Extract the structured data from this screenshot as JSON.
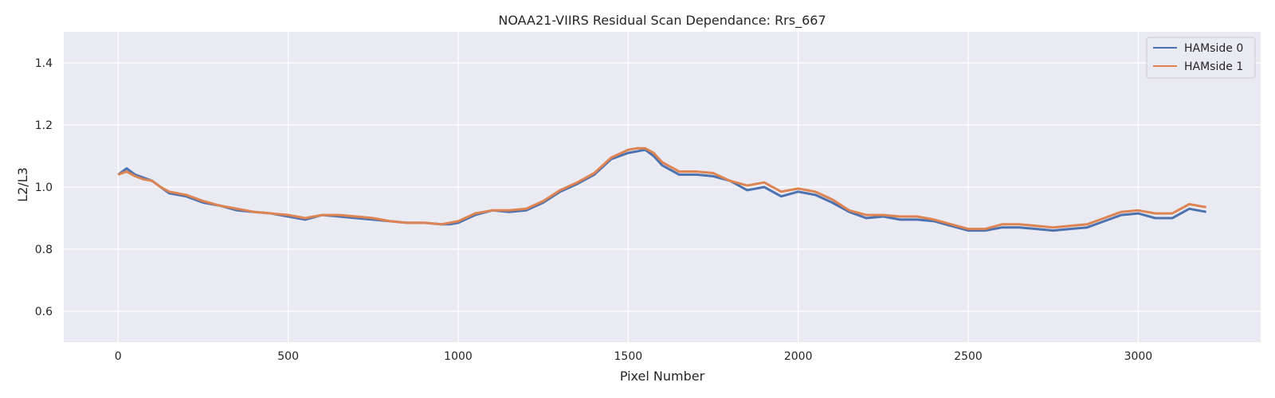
{
  "chart_data": {
    "type": "line",
    "title": "NOAA21-VIIRS Residual Scan Dependance: Rrs_667",
    "xlabel": "Pixel Number",
    "ylabel": "L2/L3",
    "xlim": [
      -160,
      3360
    ],
    "ylim": [
      0.5,
      1.5
    ],
    "xticks": [
      0,
      500,
      1000,
      1500,
      2000,
      2500,
      3000
    ],
    "yticks": [
      0.6,
      0.8,
      1.0,
      1.2,
      1.4
    ],
    "xtick_labels": [
      "0",
      "500",
      "1000",
      "1500",
      "2000",
      "2500",
      "3000"
    ],
    "ytick_labels": [
      "0.6",
      "0.8",
      "1.0",
      "1.2",
      "1.4"
    ],
    "grid": true,
    "legend_position": "top-right",
    "colors": {
      "plot_bg": "#eaeaf2",
      "grid": "#ffffff",
      "text": "#262626",
      "hamside0": "#4c72b0",
      "hamside1": "#dd8452"
    },
    "x": [
      0,
      25,
      50,
      75,
      100,
      125,
      150,
      200,
      250,
      300,
      350,
      400,
      450,
      500,
      550,
      600,
      650,
      700,
      750,
      800,
      850,
      900,
      950,
      975,
      1000,
      1050,
      1100,
      1150,
      1200,
      1250,
      1300,
      1350,
      1400,
      1450,
      1500,
      1525,
      1550,
      1575,
      1600,
      1650,
      1700,
      1750,
      1800,
      1850,
      1900,
      1950,
      2000,
      2050,
      2100,
      2150,
      2200,
      2250,
      2300,
      2350,
      2400,
      2450,
      2500,
      2550,
      2600,
      2650,
      2700,
      2750,
      2800,
      2850,
      2900,
      2950,
      3000,
      3050,
      3100,
      3150,
      3200
    ],
    "series": [
      {
        "name": "HAMside 0",
        "values": [
          1.04,
          1.06,
          1.04,
          1.03,
          1.02,
          1.0,
          0.98,
          0.97,
          0.95,
          0.94,
          0.925,
          0.92,
          0.915,
          0.905,
          0.895,
          0.91,
          0.905,
          0.9,
          0.895,
          0.89,
          0.885,
          0.885,
          0.88,
          0.88,
          0.885,
          0.91,
          0.925,
          0.92,
          0.925,
          0.95,
          0.985,
          1.01,
          1.04,
          1.09,
          1.11,
          1.115,
          1.12,
          1.1,
          1.07,
          1.04,
          1.04,
          1.035,
          1.02,
          0.99,
          1.0,
          0.97,
          0.985,
          0.975,
          0.95,
          0.92,
          0.9,
          0.905,
          0.895,
          0.895,
          0.89,
          0.875,
          0.86,
          0.86,
          0.87,
          0.87,
          0.865,
          0.86,
          0.865,
          0.87,
          0.89,
          0.91,
          0.915,
          0.9,
          0.9,
          0.93,
          0.92
        ]
      },
      {
        "name": "HAMside 1",
        "values": [
          1.04,
          1.05,
          1.035,
          1.025,
          1.02,
          1.0,
          0.985,
          0.975,
          0.955,
          0.94,
          0.93,
          0.92,
          0.915,
          0.91,
          0.9,
          0.91,
          0.91,
          0.905,
          0.9,
          0.89,
          0.885,
          0.885,
          0.88,
          0.885,
          0.89,
          0.915,
          0.925,
          0.925,
          0.93,
          0.955,
          0.99,
          1.015,
          1.045,
          1.095,
          1.12,
          1.125,
          1.125,
          1.11,
          1.08,
          1.05,
          1.05,
          1.045,
          1.02,
          1.005,
          1.015,
          0.985,
          0.995,
          0.985,
          0.96,
          0.925,
          0.91,
          0.91,
          0.905,
          0.905,
          0.895,
          0.88,
          0.865,
          0.865,
          0.88,
          0.88,
          0.875,
          0.87,
          0.875,
          0.88,
          0.9,
          0.92,
          0.925,
          0.915,
          0.915,
          0.945,
          0.935
        ]
      }
    ]
  }
}
